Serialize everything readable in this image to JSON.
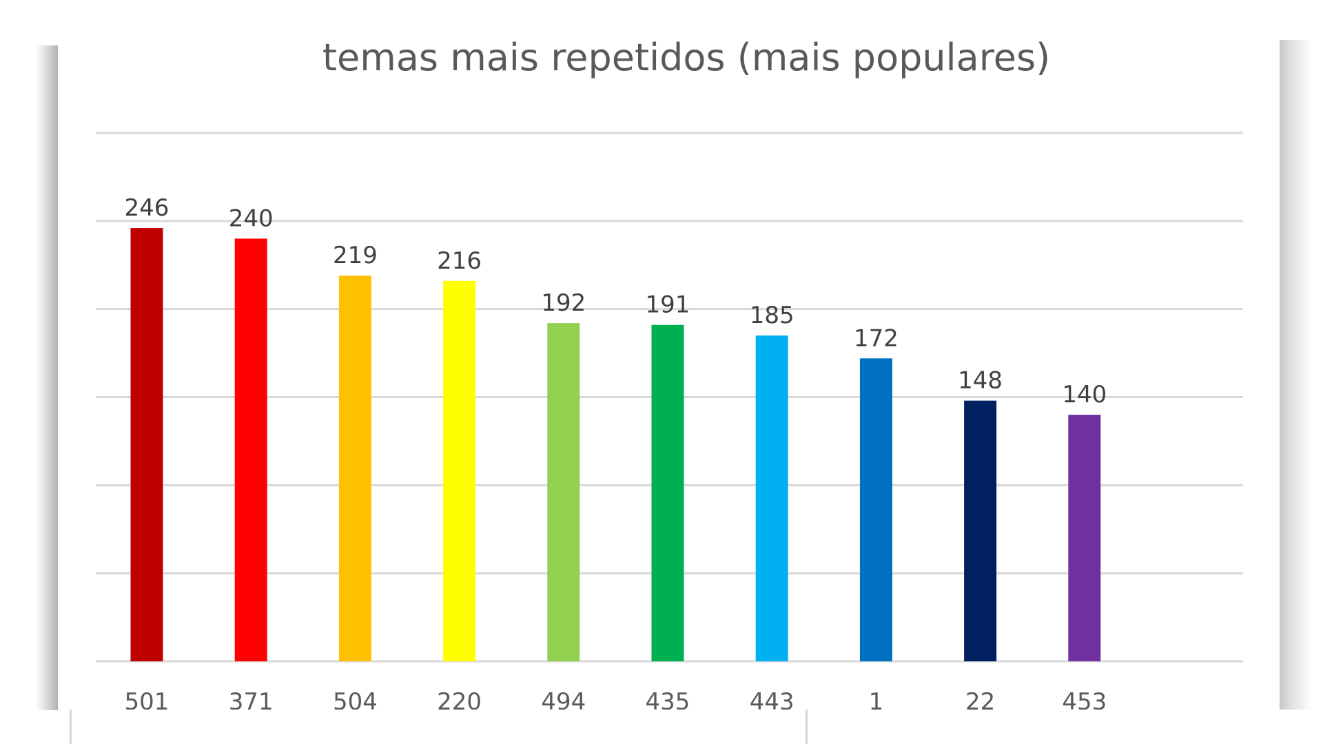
{
  "chart_data": {
    "type": "bar",
    "title": "temas mais repetidos (mais populares)",
    "categories": [
      "501",
      "371",
      "504",
      "220",
      "494",
      "435",
      "443",
      "1",
      "22",
      "453"
    ],
    "values": [
      246,
      240,
      219,
      216,
      192,
      191,
      185,
      172,
      148,
      140
    ],
    "colors": [
      "#C00000",
      "#FF0000",
      "#FFC000",
      "#FFFF00",
      "#92D050",
      "#00B050",
      "#00B0F0",
      "#0070C0",
      "#002060",
      "#7030A0"
    ],
    "xlabel": "",
    "ylabel": "",
    "ylim": [
      0,
      300
    ],
    "gridlines": [
      0,
      50,
      100,
      150,
      200,
      250,
      300
    ],
    "grid": true,
    "legend": "none",
    "data_labels": true
  }
}
